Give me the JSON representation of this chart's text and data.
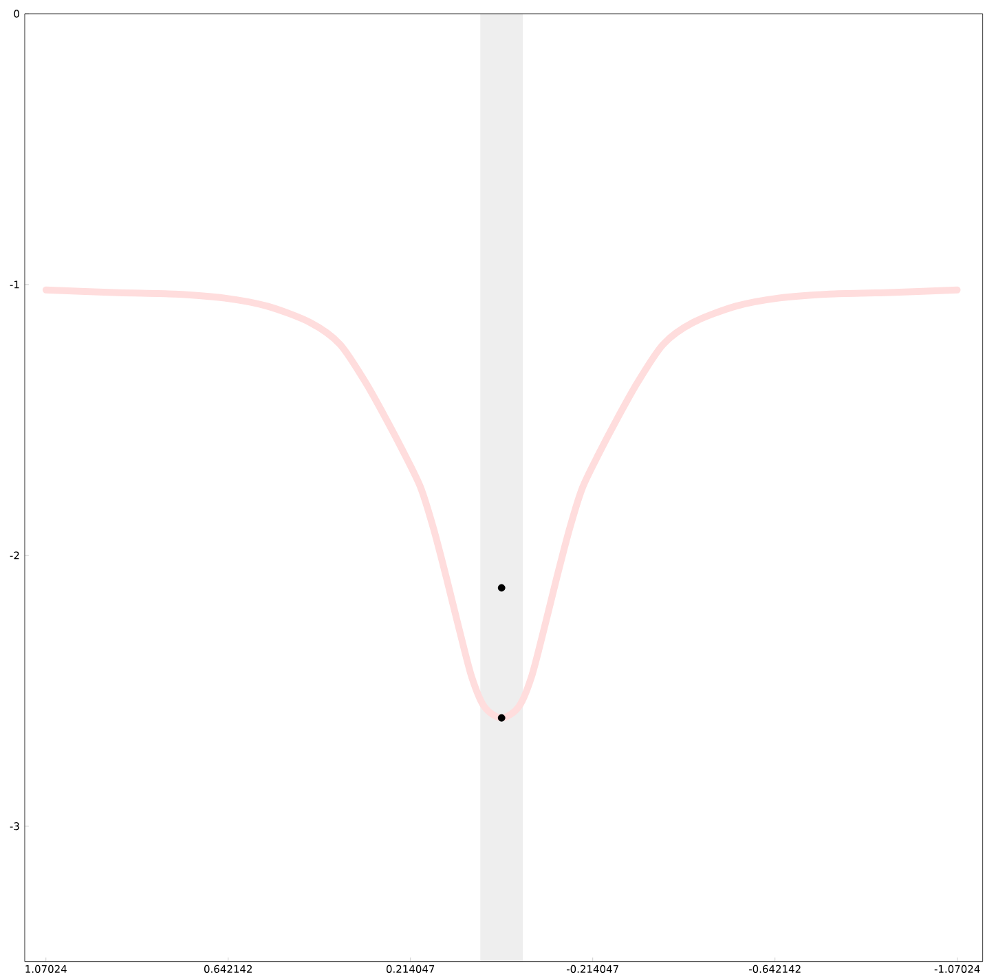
{
  "chart_data": {
    "type": "line",
    "xlim": [
      1.12,
      -1.13
    ],
    "ylim": [
      -3.5,
      0
    ],
    "xticks": [
      1.07024,
      0.642142,
      0.214047,
      -0.214047,
      -0.642142,
      -1.07024
    ],
    "yticks": [
      0,
      -1,
      -2,
      -3
    ],
    "grid": false,
    "bands": [
      {
        "axis": "x",
        "from": 0.05,
        "to": -0.05,
        "color": "#eeeeee"
      }
    ],
    "series": [
      {
        "color": "#ffdddd",
        "x": [
          1.07,
          0.9,
          0.77,
          0.65,
          0.55,
          0.45,
          0.38,
          0.32,
          0.27,
          0.23,
          0.19,
          0.16,
          0.13,
          0.1,
          0.07,
          0.04,
          0,
          -0.04,
          -0.07,
          -0.1,
          -0.13,
          -0.16,
          -0.19,
          -0.23,
          -0.27,
          -0.32,
          -0.38,
          -0.45,
          -0.55,
          -0.65,
          -0.77,
          -0.9,
          -1.07
        ],
        "values": [
          -1.02,
          -1.03,
          -1.035,
          -1.05,
          -1.08,
          -1.14,
          -1.22,
          -1.36,
          -1.5,
          -1.62,
          -1.75,
          -1.9,
          -2.08,
          -2.27,
          -2.45,
          -2.56,
          -2.6,
          -2.56,
          -2.45,
          -2.27,
          -2.08,
          -1.9,
          -1.75,
          -1.62,
          -1.5,
          -1.36,
          -1.22,
          -1.14,
          -1.08,
          -1.05,
          -1.035,
          -1.03,
          -1.02
        ]
      },
      {
        "type": "scatter",
        "color": "#000000",
        "x": [
          0,
          0
        ],
        "values": [
          -2.12,
          -2.6
        ]
      }
    ]
  }
}
